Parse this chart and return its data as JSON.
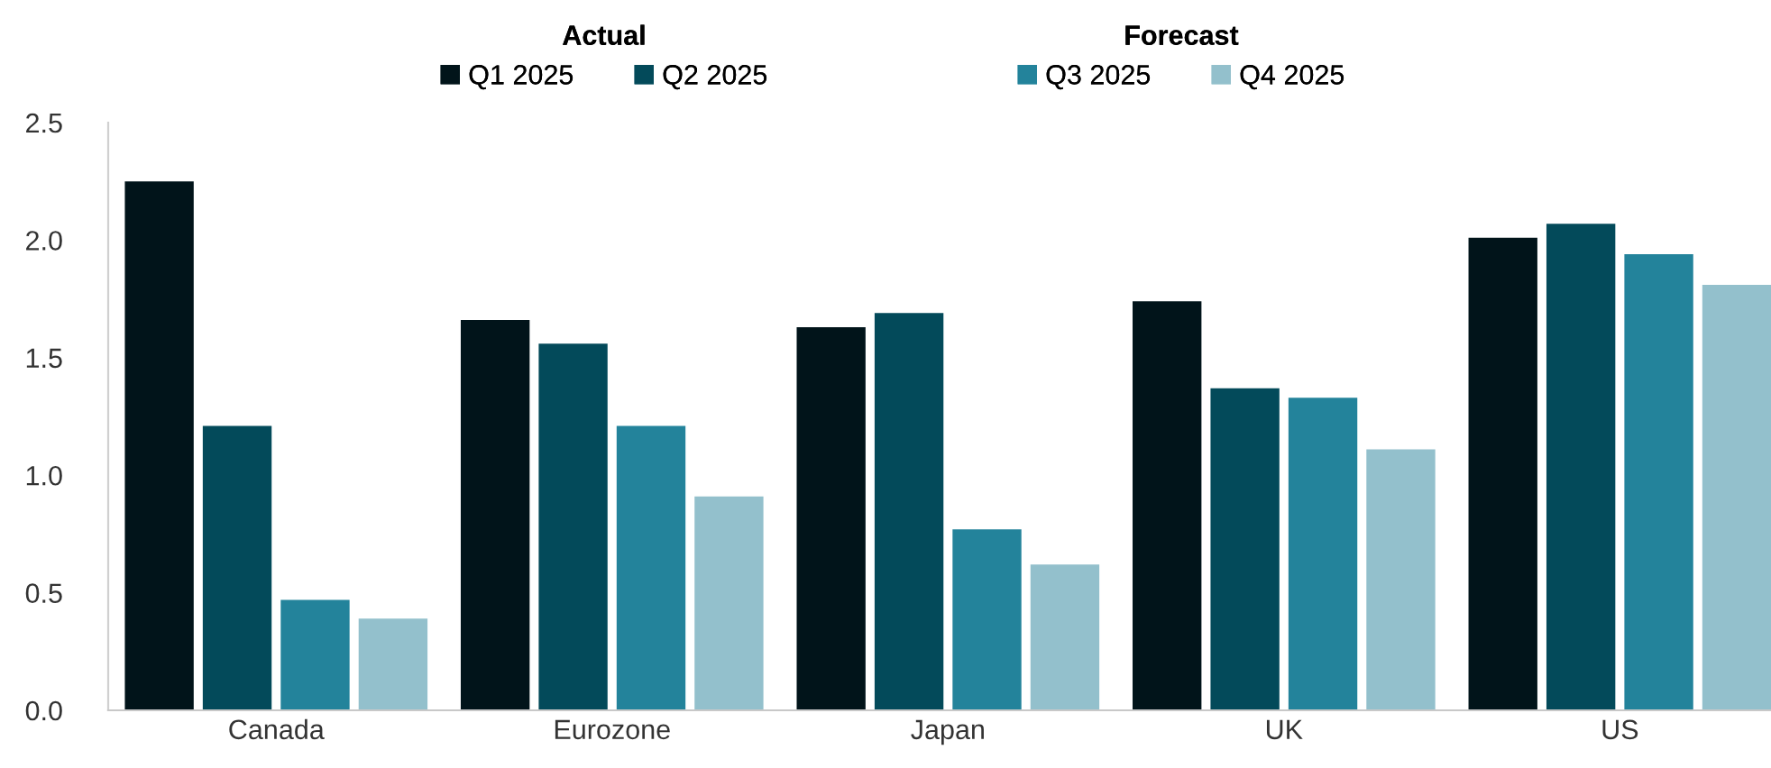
{
  "chart_data": {
    "type": "bar",
    "categories": [
      "Canada",
      "Eurozone",
      "Japan",
      "UK",
      "US"
    ],
    "series": [
      {
        "name": "Q1 2025",
        "color": "#01141a",
        "values": [
          2.25,
          1.66,
          1.63,
          1.74,
          2.01
        ]
      },
      {
        "name": "Q2 2025",
        "color": "#034a5a",
        "values": [
          1.21,
          1.56,
          1.69,
          1.37,
          2.07
        ]
      },
      {
        "name": "Q3 2025",
        "color": "#23839b",
        "values": [
          0.47,
          1.21,
          0.77,
          1.33,
          1.94
        ]
      },
      {
        "name": "Q4 2025",
        "color": "#93c0cc",
        "values": [
          0.39,
          0.91,
          0.62,
          1.11,
          1.81
        ]
      }
    ],
    "annotations": [
      "Actual",
      "Forecast"
    ],
    "ylim": [
      0,
      2.5
    ],
    "yticks": [
      {
        "value": 0,
        "label": "0.0"
      },
      {
        "value": 0.5,
        "label": "0.5"
      },
      {
        "value": 1,
        "label": "1.0"
      },
      {
        "value": 1.5,
        "label": "1.5"
      },
      {
        "value": 2,
        "label": "2.0"
      },
      {
        "value": 2.5,
        "label": "2.5"
      }
    ],
    "grid": false,
    "legend": "top"
  }
}
